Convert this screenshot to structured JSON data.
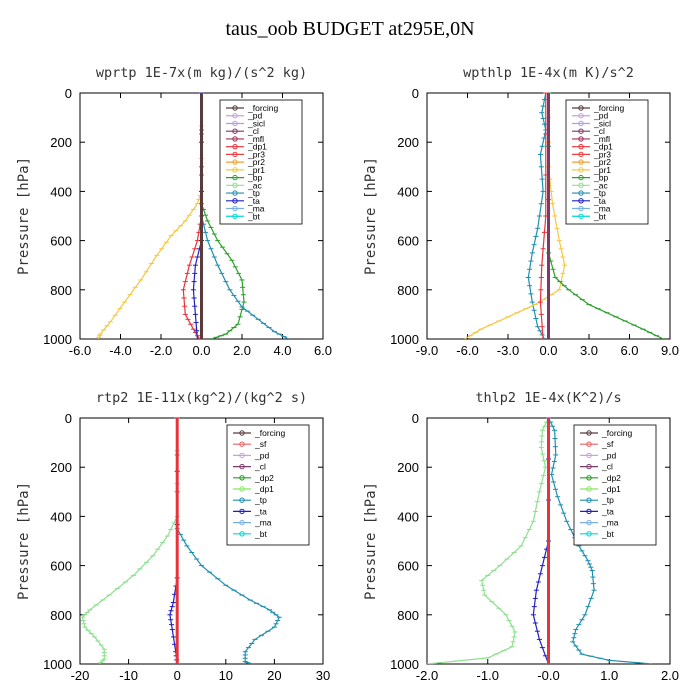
{
  "title": "taus_oob  BUDGET at295E,0N",
  "colors": {
    "_forcing": "#5a3a3a",
    "_pd": "#c9a3d9",
    "_sicl": "#b79be6",
    "_cl": "#7a3a6a",
    "_mfl": "#a0305a",
    "_dp1": "#e8333a",
    "_pr3": "#e84040",
    "_pr2": "#f0a030",
    "_pr1": "#f5c842",
    "_bp": "#2ca02c",
    "_ac": "#8fe08f",
    "_tp": "#1f8fb0",
    "_ta": "#2020c0",
    "_ma": "#7ab0e0",
    "_bt": "#00d8d8",
    "_sf": "#e86060",
    "_dp2": "#20a020",
    "_dp1g": "#88e860"
  },
  "chart_data": [
    {
      "type": "line",
      "title": "wprtp   1E-7x(m kg)/(s^2 kg)",
      "xlabel": "",
      "ylabel": "Pressure [hPa]",
      "xlim": [
        -6,
        6
      ],
      "ylim": [
        1000,
        0
      ],
      "xticks": [
        "-6.0",
        "-4.0",
        "-2.0",
        "0.0",
        "2.0",
        "4.0",
        "6.0"
      ],
      "xtick_values": [
        -6,
        -4,
        -2,
        0,
        2,
        4,
        6
      ],
      "yticks": [
        "0",
        "200",
        "400",
        "600",
        "800",
        "1000"
      ],
      "ytick_values": [
        0,
        200,
        400,
        600,
        800,
        1000
      ],
      "legend": [
        "_forcing",
        "_pd",
        "_sicl",
        "_cl",
        "_mfl",
        "_dp1",
        "_pr3",
        "_pr2",
        "_pr1",
        "_bp",
        "_ac",
        "_tp",
        "_ta",
        "_ma",
        "_bt"
      ],
      "legend_position": "top-right",
      "series": [
        {
          "name": "_pr1",
          "color": "#f5c842",
          "points": [
            [
              0,
              0
            ],
            [
              0,
              400
            ],
            [
              -0.2,
              450
            ],
            [
              -0.8,
              520
            ],
            [
              -1.5,
              580
            ],
            [
              -2.2,
              660
            ],
            [
              -3,
              760
            ],
            [
              -3.8,
              850
            ],
            [
              -4.5,
              930
            ],
            [
              -5,
              980
            ],
            [
              -5.1,
              1000
            ]
          ]
        },
        {
          "name": "_dp1",
          "color": "#e8333a",
          "points": [
            [
              0,
              0
            ],
            [
              0,
              500
            ],
            [
              -0.2,
              600
            ],
            [
              -0.6,
              700
            ],
            [
              -0.9,
              800
            ],
            [
              -0.8,
              900
            ],
            [
              -0.4,
              960
            ],
            [
              -0.1,
              1000
            ]
          ]
        },
        {
          "name": "_bp",
          "color": "#2ca02c",
          "points": [
            [
              0,
              0
            ],
            [
              0,
              450
            ],
            [
              0.3,
              520
            ],
            [
              0.8,
              600
            ],
            [
              1.5,
              680
            ],
            [
              2,
              760
            ],
            [
              2.1,
              850
            ],
            [
              1.8,
              940
            ],
            [
              1.2,
              980
            ],
            [
              0.5,
              1000
            ]
          ]
        },
        {
          "name": "_tp",
          "color": "#1f8fb0",
          "points": [
            [
              0,
              0
            ],
            [
              0,
              500
            ],
            [
              0.3,
              600
            ],
            [
              0.8,
              700
            ],
            [
              1.4,
              800
            ],
            [
              2,
              870
            ],
            [
              2.8,
              920
            ],
            [
              3.6,
              970
            ],
            [
              4.3,
              1000
            ]
          ]
        },
        {
          "name": "_ta",
          "color": "#2020c0",
          "points": [
            [
              0,
              0
            ],
            [
              0,
              600
            ],
            [
              -0.3,
              700
            ],
            [
              -0.4,
              800
            ],
            [
              -0.3,
              900
            ],
            [
              -0.2,
              1000
            ]
          ]
        },
        {
          "name": "_forcing",
          "color": "#5a3a3a",
          "points": [
            [
              0,
              0
            ],
            [
              0,
              1000
            ]
          ]
        }
      ]
    },
    {
      "type": "line",
      "title": "wpthlp   1E-4x(m K)/s^2",
      "xlabel": "",
      "ylabel": "Pressure [hPa]",
      "xlim": [
        -9,
        9
      ],
      "ylim": [
        1000,
        0
      ],
      "xticks": [
        "-9.0",
        "-6.0",
        "-3.0",
        "0.0",
        "3.0",
        "6.0",
        "9.0"
      ],
      "xtick_values": [
        -9,
        -6,
        -3,
        0,
        3,
        6,
        9
      ],
      "yticks": [
        "0",
        "200",
        "400",
        "600",
        "800",
        "1000"
      ],
      "ytick_values": [
        0,
        200,
        400,
        600,
        800,
        1000
      ],
      "legend": [
        "_forcing",
        "_pd",
        "_sicl",
        "_cl",
        "_mfl",
        "_dp1",
        "_pr3",
        "_pr2",
        "_pr1",
        "_bp",
        "_ac",
        "_tp",
        "_ta",
        "_ma",
        "_bt"
      ],
      "legend_position": "top-right",
      "series": [
        {
          "name": "_tp",
          "color": "#1f8fb0",
          "points": [
            [
              -0.2,
              0
            ],
            [
              -0.5,
              80
            ],
            [
              -0.2,
              150
            ],
            [
              -0.6,
              250
            ],
            [
              -0.4,
              400
            ],
            [
              -0.8,
              550
            ],
            [
              -1.2,
              650
            ],
            [
              -1.5,
              750
            ],
            [
              -1.2,
              850
            ],
            [
              -0.8,
              950
            ],
            [
              -0.3,
              1000
            ]
          ]
        },
        {
          "name": "_pr1",
          "color": "#f5c842",
          "points": [
            [
              0,
              0
            ],
            [
              0,
              300
            ],
            [
              0.3,
              450
            ],
            [
              0.8,
              600
            ],
            [
              1.2,
              700
            ],
            [
              0.8,
              800
            ],
            [
              -1,
              860
            ],
            [
              -3,
              910
            ],
            [
              -5,
              960
            ],
            [
              -6.2,
              1000
            ]
          ]
        },
        {
          "name": "_bp",
          "color": "#2ca02c",
          "points": [
            [
              0,
              0
            ],
            [
              0,
              650
            ],
            [
              0.5,
              750
            ],
            [
              1.5,
              800
            ],
            [
              3,
              860
            ],
            [
              5,
              910
            ],
            [
              7,
              960
            ],
            [
              8.5,
              1000
            ]
          ]
        },
        {
          "name": "_dp1",
          "color": "#e8333a",
          "points": [
            [
              -0.2,
              0
            ],
            [
              -0.2,
              500
            ],
            [
              -0.5,
              700
            ],
            [
              -0.6,
              850
            ],
            [
              -0.4,
              1000
            ]
          ]
        },
        {
          "name": "_cl",
          "color": "#7a3a6a",
          "points": [
            [
              0,
              0
            ],
            [
              0,
              1000
            ]
          ]
        }
      ]
    },
    {
      "type": "line",
      "title": "rtp2   1E-11x(kg^2)/(kg^2 s)",
      "xlabel": "",
      "ylabel": "Pressure [hPa]",
      "xlim": [
        -20,
        30
      ],
      "ylim": [
        1000,
        0
      ],
      "xticks": [
        "-20",
        "-10",
        "0",
        "10",
        "20",
        "30"
      ],
      "xtick_values": [
        -20,
        -10,
        0,
        10,
        20,
        30
      ],
      "yticks": [
        "0",
        "200",
        "400",
        "600",
        "800",
        "1000"
      ],
      "ytick_values": [
        0,
        200,
        400,
        600,
        800,
        1000
      ],
      "legend": [
        "_forcing",
        "_sf",
        "_pd",
        "_cl",
        "_dp2",
        "_dp1",
        "_tp",
        "_ta",
        "_ma",
        "_bt"
      ],
      "legend_position": "top-right",
      "series": [
        {
          "name": "_dp1",
          "color": "#8fe08f",
          "points": [
            [
              0,
              0
            ],
            [
              0,
              400
            ],
            [
              -2,
              480
            ],
            [
              -5,
              560
            ],
            [
              -9,
              640
            ],
            [
              -14,
              720
            ],
            [
              -18,
              780
            ],
            [
              -19.5,
              810
            ],
            [
              -19,
              850
            ],
            [
              -17,
              890
            ],
            [
              -15,
              940
            ],
            [
              -15,
              980
            ],
            [
              -16,
              1000
            ]
          ]
        },
        {
          "name": "_tp",
          "color": "#1f8fb0",
          "points": [
            [
              0,
              0
            ],
            [
              0,
              450
            ],
            [
              2,
              520
            ],
            [
              5,
              600
            ],
            [
              10,
              680
            ],
            [
              15,
              740
            ],
            [
              19,
              780
            ],
            [
              21,
              810
            ],
            [
              20,
              850
            ],
            [
              16,
              900
            ],
            [
              14,
              950
            ],
            [
              14,
              990
            ],
            [
              15,
              1000
            ]
          ]
        },
        {
          "name": "_ta",
          "color": "#2020c0",
          "points": [
            [
              0,
              0
            ],
            [
              0,
              650
            ],
            [
              -0.8,
              750
            ],
            [
              -1.5,
              800
            ],
            [
              -1,
              860
            ],
            [
              -0.3,
              950
            ],
            [
              0,
              1000
            ]
          ]
        },
        {
          "name": "_forcing",
          "color": "#e8333a",
          "points": [
            [
              0,
              0
            ],
            [
              0,
              1000
            ]
          ]
        }
      ]
    },
    {
      "type": "line",
      "title": "thlp2   1E-4x(K^2)/s",
      "xlabel": "",
      "ylabel": "Pressure [hPa]",
      "xlim": [
        -2,
        2
      ],
      "ylim": [
        1000,
        0
      ],
      "xticks": [
        "-2.0",
        "-1.0",
        "-0.0",
        "1.0",
        "2.0"
      ],
      "xtick_values": [
        -2,
        -1,
        0,
        1,
        2
      ],
      "yticks": [
        "0",
        "200",
        "400",
        "600",
        "800",
        "1000"
      ],
      "ytick_values": [
        0,
        200,
        400,
        600,
        800,
        1000
      ],
      "legend": [
        "_forcing",
        "_sf",
        "_pd",
        "_cl",
        "_dp2",
        "_dp1",
        "_tp",
        "_ta",
        "_ma",
        "_bt"
      ],
      "legend_position": "top-right",
      "series": [
        {
          "name": "_dp1",
          "color": "#8fe08f",
          "points": [
            [
              0,
              0
            ],
            [
              -0.1,
              50
            ],
            [
              -0.12,
              120
            ],
            [
              -0.05,
              200
            ],
            [
              -0.15,
              300
            ],
            [
              -0.25,
              420
            ],
            [
              -0.45,
              520
            ],
            [
              -0.8,
              600
            ],
            [
              -1.1,
              660
            ],
            [
              -1.05,
              720
            ],
            [
              -0.7,
              800
            ],
            [
              -0.55,
              870
            ],
            [
              -0.6,
              930
            ],
            [
              -1,
              975
            ],
            [
              -1.8,
              995
            ],
            [
              -2,
              1000
            ]
          ]
        },
        {
          "name": "_tp",
          "color": "#1f8fb0",
          "points": [
            [
              0,
              0
            ],
            [
              0.1,
              50
            ],
            [
              0.12,
              150
            ],
            [
              0.05,
              230
            ],
            [
              0.15,
              320
            ],
            [
              0.3,
              420
            ],
            [
              0.5,
              520
            ],
            [
              0.65,
              580
            ],
            [
              0.72,
              620
            ],
            [
              0.75,
              700
            ],
            [
              0.6,
              800
            ],
            [
              0.45,
              860
            ],
            [
              0.4,
              910
            ],
            [
              0.55,
              960
            ],
            [
              1,
              985
            ],
            [
              1.7,
              1000
            ]
          ]
        },
        {
          "name": "_ta",
          "color": "#2020c0",
          "points": [
            [
              0,
              0
            ],
            [
              0,
              500
            ],
            [
              -0.1,
              600
            ],
            [
              -0.2,
              700
            ],
            [
              -0.25,
              800
            ],
            [
              -0.15,
              900
            ],
            [
              0,
              1000
            ]
          ]
        },
        {
          "name": "_forcing",
          "color": "#e8333a",
          "points": [
            [
              0,
              0
            ],
            [
              0,
              1000
            ]
          ]
        }
      ]
    }
  ]
}
